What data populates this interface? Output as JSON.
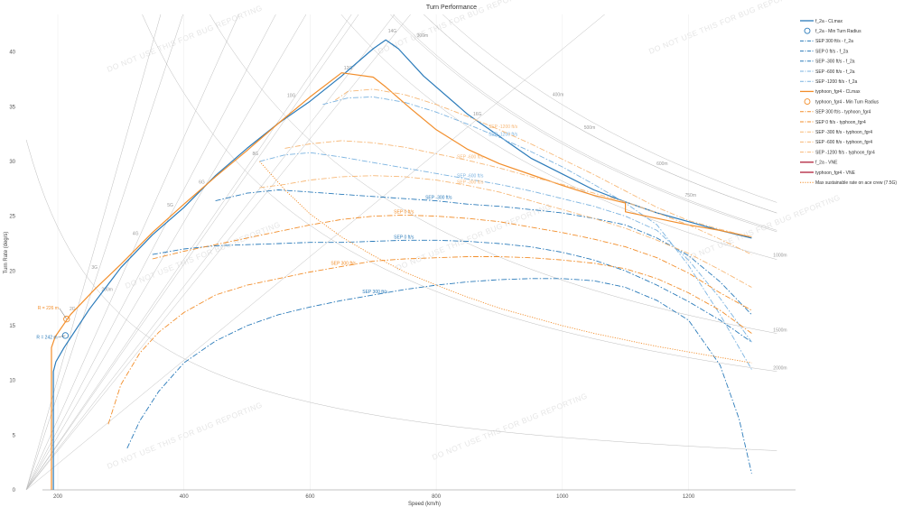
{
  "chart_data": {
    "type": "line",
    "title": "Turn Performance",
    "xlabel": "Speed (km/h)",
    "ylabel": "Turn Rate (deg/s)",
    "xlim": [
      150,
      1330
    ],
    "ylim": [
      0,
      43
    ],
    "xticks": [
      "200",
      "400",
      "600",
      "800",
      "1000",
      "1200"
    ],
    "yticks": [
      "0",
      "5",
      "10",
      "15",
      "20",
      "25",
      "30",
      "35",
      "40"
    ],
    "grid": "x-gridlines",
    "legend_position": "right",
    "watermark": "DO NOT USE THIS FOR BUG REPORTING",
    "colors": {
      "f_2a": "#2b7bba",
      "f_2a_light": "#7bb3e0",
      "typhoon": "#f28e2b",
      "typhoon_light": "#f7b877",
      "vne": "#b0213a",
      "reference": "#aaaaaa"
    },
    "g_lines": {
      "labels": [
        "2G",
        "3G",
        "4G",
        "5G",
        "6G",
        "8G",
        "10G",
        "12G",
        "14G",
        "16G"
      ],
      "label_points": [
        [
          230,
          16.3
        ],
        [
          265,
          20.1
        ],
        [
          330,
          23.2
        ],
        [
          385,
          25.8
        ],
        [
          435,
          27.9
        ],
        [
          520,
          30.5
        ],
        [
          575,
          35.8
        ],
        [
          665,
          38.3
        ],
        [
          735,
          41.7
        ],
        [
          870,
          34.1
        ]
      ]
    },
    "radius_lines": {
      "labels": [
        "200m",
        "300m",
        "400m",
        "500m",
        "600m",
        "750m",
        "1000m",
        "1500m",
        "2000m"
      ],
      "label_points": [
        [
          265,
          18.1
        ],
        [
          765,
          41.3
        ],
        [
          980,
          35.9
        ],
        [
          1030,
          32.9
        ],
        [
          1145,
          29.6
        ],
        [
          1190,
          26.7
        ],
        [
          1330,
          21.2
        ],
        [
          1330,
          14.4
        ],
        [
          1330,
          10.9
        ]
      ]
    },
    "series": [
      {
        "name": "f_2a - CLmax",
        "style": "solid",
        "color": "#2b7bba",
        "x": [
          193,
          193,
          197,
          210,
          250,
          300,
          350,
          400,
          450,
          500,
          550,
          600,
          650,
          700,
          720,
          740,
          780,
          850,
          950,
          1050,
          1100,
          1150,
          1200,
          1250,
          1300
        ],
        "y": [
          0,
          10.8,
          11.7,
          13.0,
          16.5,
          20.3,
          23.3,
          25.8,
          28.7,
          31.2,
          33.5,
          35.5,
          37.8,
          40.3,
          41.1,
          40.3,
          37.8,
          34.3,
          30.3,
          27.4,
          26.3,
          25.3,
          24.5,
          23.7,
          23.0
        ]
      },
      {
        "name": "f_2a - Min Turn Radius",
        "style": "marker",
        "color": "#2b7bba",
        "x": [
          212
        ],
        "y": [
          14.1
        ],
        "annotation": "R = 242 m"
      },
      {
        "name": "SEP 300 ft/s - f_2a",
        "style": "dashdot",
        "color": "#2b7bba",
        "label": "SEP 300 ft/s",
        "x": [
          310,
          330,
          360,
          400,
          450,
          500,
          550,
          600,
          650,
          700,
          750,
          800,
          850,
          900,
          950,
          1000,
          1050,
          1100,
          1150,
          1200,
          1250,
          1280,
          1300
        ],
        "y": [
          3.8,
          6.3,
          9.0,
          11.6,
          13.6,
          15.0,
          16.0,
          16.7,
          17.3,
          17.8,
          18.3,
          18.7,
          19.0,
          19.2,
          19.3,
          19.3,
          19.1,
          18.5,
          17.3,
          15.5,
          11.4,
          6.5,
          1.5
        ]
      },
      {
        "name": "SEP 0 ft/s - f_2a",
        "style": "dashdot",
        "color": "#2b7bba",
        "label": "SEP 0 ft/s",
        "x": [
          350,
          400,
          450,
          500,
          550,
          600,
          650,
          700,
          750,
          800,
          850,
          900,
          950,
          1000,
          1050,
          1100,
          1150,
          1200,
          1250,
          1300
        ],
        "y": [
          21.5,
          22.0,
          22.3,
          22.4,
          22.5,
          22.6,
          22.6,
          22.7,
          22.8,
          22.8,
          22.7,
          22.5,
          22.2,
          21.7,
          21.0,
          20.0,
          18.7,
          17.2,
          15.5,
          13.5
        ]
      },
      {
        "name": "SEP -300 ft/s - f_2a",
        "style": "dashdot",
        "color": "#2b7bba",
        "label": "SEP -300 ft/s",
        "x": [
          450,
          500,
          550,
          600,
          650,
          700,
          750,
          800,
          850,
          900,
          950,
          1000,
          1050,
          1100,
          1150,
          1200,
          1250,
          1300
        ],
        "y": [
          26.4,
          27.1,
          27.4,
          27.2,
          27.0,
          26.8,
          26.6,
          26.4,
          26.1,
          25.9,
          25.6,
          25.3,
          24.8,
          24.2,
          23.0,
          21.4,
          19.0,
          16.0
        ]
      },
      {
        "name": "SEP -600 ft/s - f_2a",
        "style": "dashdot",
        "color": "#7bb3e0",
        "label": "SEP -600 ft/s",
        "x": [
          520,
          560,
          600,
          650,
          700,
          750,
          800,
          850,
          900,
          950,
          1000,
          1050,
          1100,
          1150,
          1200,
          1250,
          1300
        ],
        "y": [
          30.0,
          30.6,
          30.8,
          30.4,
          29.9,
          29.4,
          28.9,
          28.4,
          27.9,
          27.3,
          26.6,
          25.9,
          25.0,
          23.7,
          21.0,
          17.5,
          13.5
        ]
      },
      {
        "name": "SEP -1200 ft/s - f_2a",
        "style": "dashdot",
        "color": "#7bb3e0",
        "label": "SEP -1200 ft/s",
        "x": [
          620,
          660,
          700,
          750,
          800,
          850,
          900,
          950,
          1000,
          1050,
          1100,
          1150,
          1200,
          1250,
          1300
        ],
        "y": [
          35.2,
          35.8,
          35.9,
          35.4,
          34.5,
          33.4,
          32.2,
          30.9,
          29.5,
          27.9,
          26.2,
          24.2,
          20.5,
          16.0,
          11.0
        ]
      },
      {
        "name": "typhoon_fgr4 - CLmax",
        "style": "solid",
        "color": "#f28e2b",
        "x": [
          190,
          190,
          196,
          220,
          260,
          300,
          350,
          400,
          450,
          500,
          550,
          600,
          650,
          700,
          720,
          760,
          800,
          850,
          900,
          950,
          1000,
          1050,
          1100,
          1100,
          1150,
          1200,
          1250,
          1300
        ],
        "y": [
          0,
          13.0,
          14.0,
          16.0,
          18.4,
          20.6,
          23.5,
          26.1,
          28.6,
          31.0,
          33.5,
          35.9,
          38.1,
          37.7,
          36.8,
          34.8,
          32.9,
          31.1,
          29.8,
          28.8,
          27.8,
          26.9,
          26.2,
          25.4,
          24.8,
          24.2,
          23.7,
          23.1
        ]
      },
      {
        "name": "typhoon_fgr4 - Min Turn Radius",
        "style": "marker",
        "color": "#f28e2b",
        "x": [
          214
        ],
        "y": [
          15.6
        ],
        "annotation": "R = 226 m"
      },
      {
        "name": "SEP 300 ft/s - typhoon_fgr4",
        "style": "dashdot",
        "color": "#f28e2b",
        "label": "SEP 300 ft/s",
        "x": [
          280,
          300,
          330,
          360,
          400,
          450,
          500,
          550,
          600,
          650,
          700,
          750,
          800,
          850,
          900,
          950,
          1000,
          1050,
          1100,
          1150,
          1200,
          1250,
          1300
        ],
        "y": [
          6.0,
          9.6,
          12.5,
          14.4,
          16.2,
          17.8,
          18.7,
          19.3,
          19.9,
          20.4,
          20.9,
          21.1,
          21.2,
          21.3,
          21.3,
          21.2,
          21.0,
          20.7,
          20.2,
          19.3,
          18.0,
          16.4,
          14.3
        ]
      },
      {
        "name": "SEP 0 ft/s - typhoon_fgr4",
        "style": "dashdot",
        "color": "#f28e2b",
        "label": "SEP 0 ft/s",
        "x": [
          350,
          400,
          450,
          500,
          550,
          600,
          650,
          700,
          750,
          800,
          850,
          900,
          950,
          1000,
          1050,
          1100,
          1150,
          1200,
          1250,
          1300
        ],
        "y": [
          21.1,
          21.8,
          22.4,
          23.0,
          23.6,
          24.2,
          24.7,
          25.0,
          25.1,
          25.0,
          24.8,
          24.5,
          24.0,
          23.5,
          22.9,
          22.2,
          21.2,
          19.8,
          18.0,
          16.4
        ]
      },
      {
        "name": "SEP -300 ft/s - typhoon_fgr4",
        "style": "dashdot",
        "color": "#f7b877",
        "label": "SEP -300 ft/s",
        "x": [
          520,
          560,
          600,
          650,
          700,
          750,
          800,
          850,
          900,
          950,
          1000,
          1050,
          1100,
          1150,
          1200,
          1250,
          1300
        ],
        "y": [
          27.6,
          27.9,
          28.3,
          28.6,
          28.7,
          28.6,
          28.3,
          27.8,
          27.2,
          26.4,
          25.6,
          24.8,
          23.9,
          22.8,
          21.6,
          20.1,
          18.5
        ]
      },
      {
        "name": "SEP -600 ft/s - typhoon_fgr4",
        "style": "dashdot",
        "color": "#f7b877",
        "label": "SEP -600 ft/s",
        "x": [
          560,
          600,
          650,
          700,
          750,
          800,
          850,
          900,
          950,
          1000,
          1050,
          1100,
          1150,
          1200,
          1250,
          1300
        ],
        "y": [
          31.2,
          31.6,
          31.9,
          31.7,
          31.3,
          30.7,
          30.1,
          29.4,
          28.6,
          27.9,
          27.1,
          26.3,
          25.3,
          24.2,
          22.9,
          21.5
        ]
      },
      {
        "name": "SEP -1200 ft/s - typhoon_fgr4",
        "style": "dashdot",
        "color": "#f7b877",
        "label": "SEP -1200 ft/s",
        "x": [
          640,
          660,
          700,
          750,
          800,
          850,
          900,
          950,
          1000,
          1050,
          1100,
          1150,
          1200,
          1250,
          1300
        ],
        "y": [
          35.6,
          36.4,
          36.6,
          36.1,
          35.2,
          34.1,
          32.9,
          31.6,
          30.2,
          28.8,
          27.3,
          25.8,
          24.6,
          23.8,
          23.1
        ]
      },
      {
        "name": "f_2a - VNE",
        "style": "solid",
        "color": "#b0213a",
        "x": [],
        "y": []
      },
      {
        "name": "typhoon_fgr4 - VNE",
        "style": "solid",
        "color": "#b0213a",
        "x": [],
        "y": []
      },
      {
        "name": "Max sustainable rate on ace crew (7.5G)",
        "style": "dotted",
        "color": "#f28e2b",
        "x": [
          520,
          560,
          600,
          650,
          700,
          750,
          800,
          850,
          900,
          950,
          1000,
          1050,
          1100,
          1150,
          1200,
          1250,
          1300
        ],
        "y": [
          30.0,
          27.4,
          25.2,
          23.1,
          21.4,
          19.9,
          18.7,
          17.6,
          16.6,
          15.8,
          15.0,
          14.3,
          13.7,
          13.1,
          12.6,
          12.1,
          11.6
        ]
      }
    ]
  }
}
